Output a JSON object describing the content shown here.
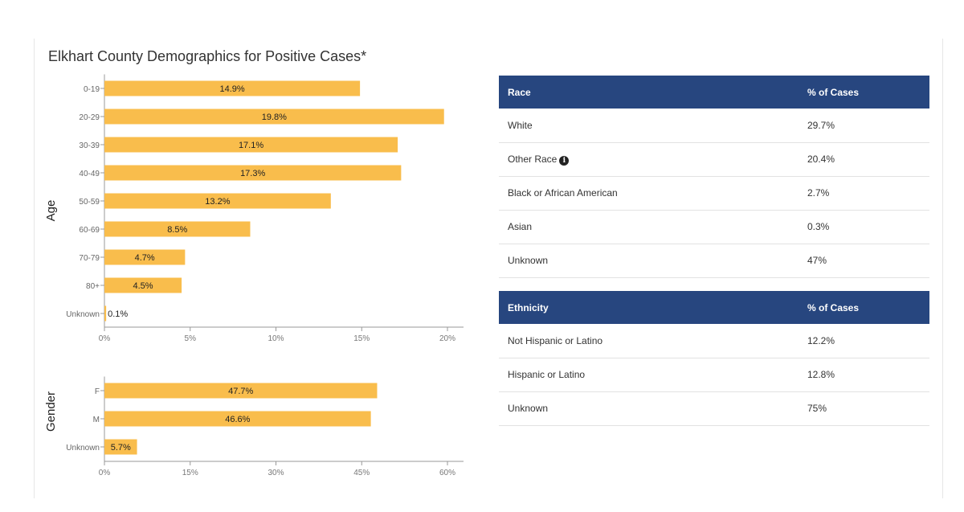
{
  "title": "Elkhart County Demographics for Positive Cases*",
  "colors": {
    "bar": "#f9bd4c",
    "header": "#27467f",
    "axis": "#999999"
  },
  "chart_data": [
    {
      "type": "bar",
      "orientation": "horizontal",
      "ylabel": "Age",
      "categories": [
        "0-19",
        "20-29",
        "30-39",
        "40-49",
        "50-59",
        "60-69",
        "70-79",
        "80+",
        "Unknown"
      ],
      "values": [
        14.9,
        19.8,
        17.1,
        17.3,
        13.2,
        8.5,
        4.7,
        4.5,
        0.1
      ],
      "data_labels": [
        "14.9%",
        "19.8%",
        "17.1%",
        "17.3%",
        "13.2%",
        "8.5%",
        "4.7%",
        "4.5%",
        "0.1%"
      ],
      "xlim": [
        0,
        20
      ],
      "xticks": [
        0,
        5,
        10,
        15,
        20
      ],
      "xtick_labels": [
        "0%",
        "5%",
        "10%",
        "15%",
        "20%"
      ],
      "grid": false
    },
    {
      "type": "bar",
      "orientation": "horizontal",
      "ylabel": "Gender",
      "categories": [
        "F",
        "M",
        "Unknown"
      ],
      "values": [
        47.7,
        46.6,
        5.7
      ],
      "data_labels": [
        "47.7%",
        "46.6%",
        "5.7%"
      ],
      "xlim": [
        0,
        60
      ],
      "xticks": [
        0,
        15,
        30,
        45,
        60
      ],
      "xtick_labels": [
        "0%",
        "15%",
        "30%",
        "45%",
        "60%"
      ],
      "grid": false
    }
  ],
  "race_table": {
    "headers": [
      "Race",
      "% of Cases"
    ],
    "rows": [
      [
        "White",
        "29.7%"
      ],
      [
        "Other Race",
        "20.4%"
      ],
      [
        "Black or African American",
        "2.7%"
      ],
      [
        "Asian",
        "0.3%"
      ],
      [
        "Unknown",
        "47%"
      ]
    ],
    "info_icon_row": 1,
    "info_icon": "info-icon"
  },
  "ethnicity_table": {
    "headers": [
      "Ethnicity",
      "% of Cases"
    ],
    "rows": [
      [
        "Not Hispanic or Latino",
        "12.2%"
      ],
      [
        "Hispanic or Latino",
        "12.8%"
      ],
      [
        "Unknown",
        "75%"
      ]
    ]
  }
}
